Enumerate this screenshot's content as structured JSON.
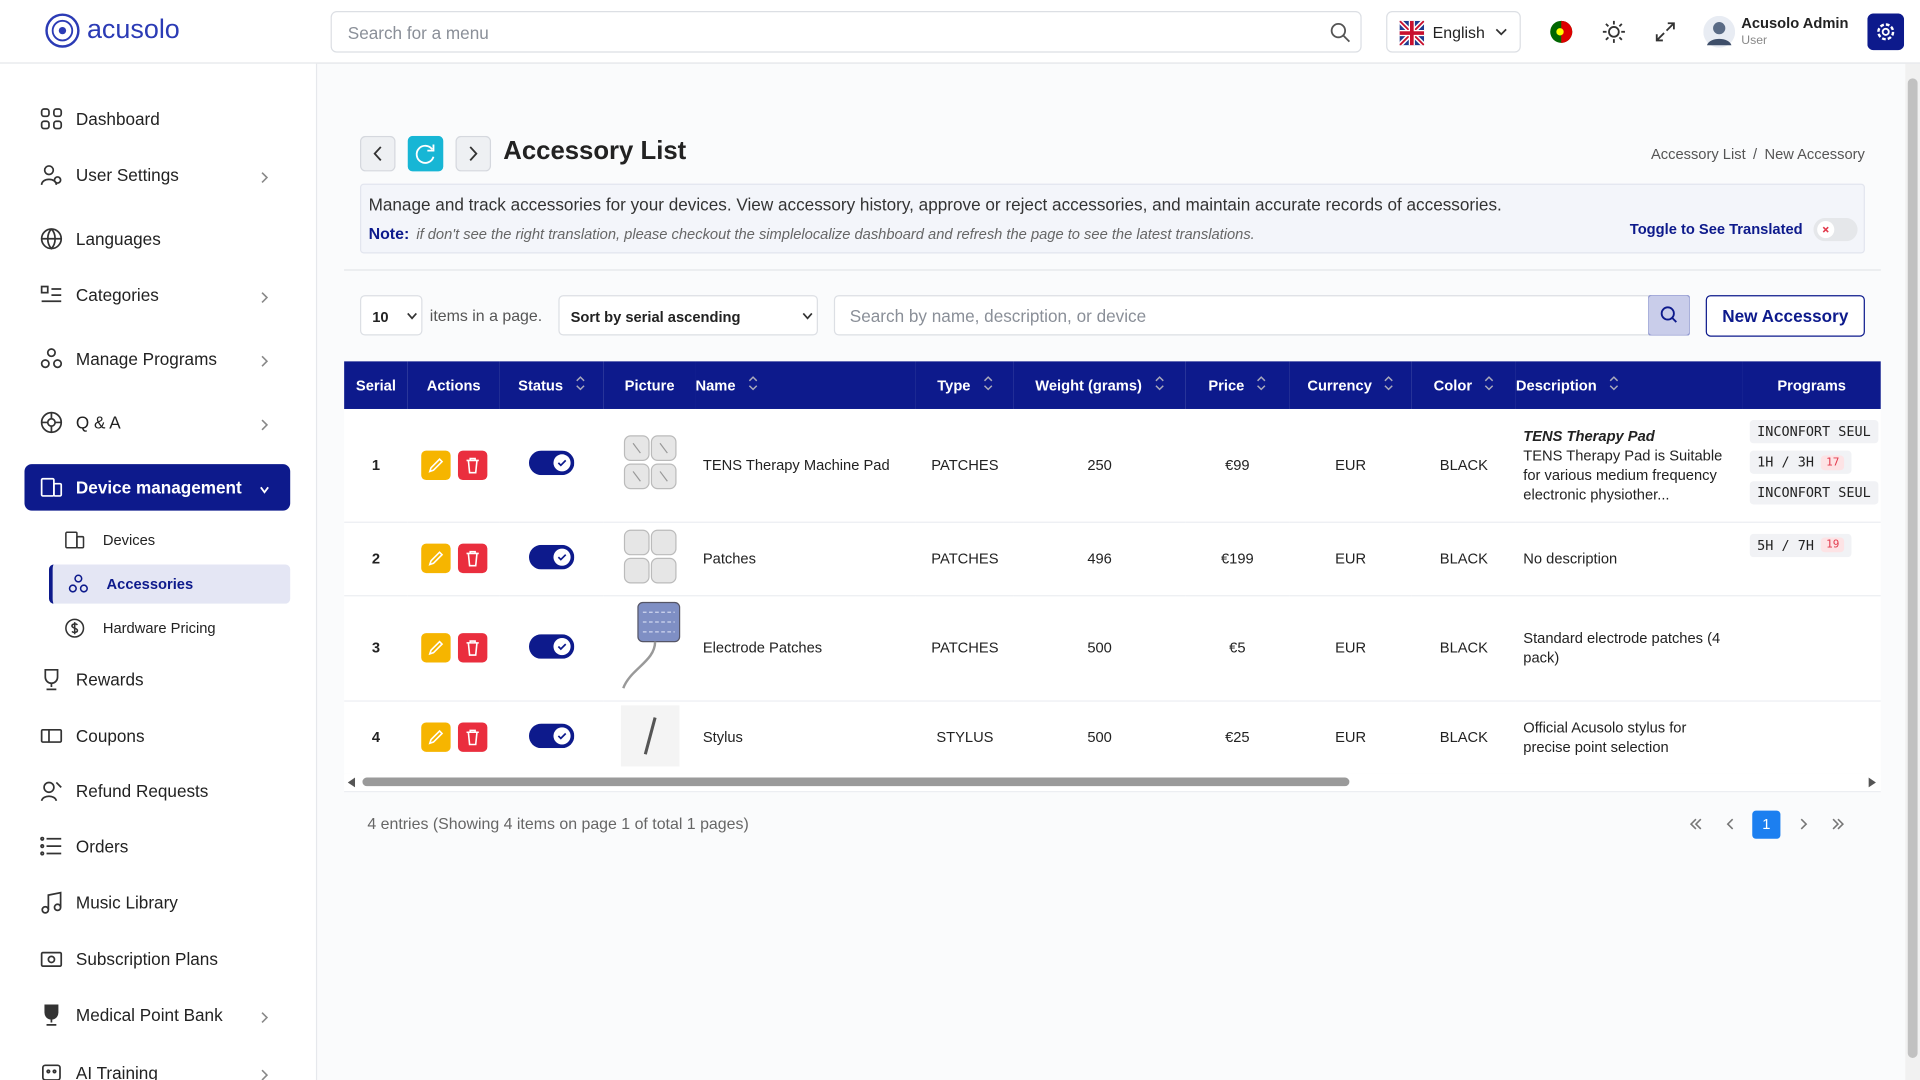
{
  "header": {
    "logo": "acusolo",
    "search_placeholder": "Search for a menu",
    "language": "English",
    "user_name": "Acusolo Admin",
    "user_role": "User"
  },
  "sidebar": {
    "items": [
      {
        "label": "Dashboard"
      },
      {
        "label": "User Settings",
        "expandable": true
      },
      {
        "label": "Languages"
      },
      {
        "label": "Categories",
        "expandable": true
      },
      {
        "label": "Manage Programs",
        "expandable": true
      },
      {
        "label": "Q & A",
        "expandable": true
      },
      {
        "label": "Device management",
        "expandable": true,
        "active": true,
        "children": [
          {
            "label": "Devices"
          },
          {
            "label": "Accessories",
            "active": true
          },
          {
            "label": "Hardware Pricing"
          }
        ]
      },
      {
        "label": "Rewards"
      },
      {
        "label": "Coupons"
      },
      {
        "label": "Refund Requests"
      },
      {
        "label": "Orders"
      },
      {
        "label": "Music Library"
      },
      {
        "label": "Subscription Plans"
      },
      {
        "label": "Medical Point Bank",
        "expandable": true
      },
      {
        "label": "AI Training",
        "expandable": true
      }
    ]
  },
  "page": {
    "title": "Accessory List",
    "breadcrumb": [
      "Accessory List",
      "New Accessory"
    ],
    "description": "Manage and track accessories for your devices. View accessory history, approve or reject accessories, and maintain accurate records of accessories.",
    "note_label": "Note:",
    "note_text": "if don't see the right translation, please checkout the simplelocalize dashboard and refresh the page to see the latest translations.",
    "toggle_label": "Toggle to See Translated"
  },
  "toolbar": {
    "page_size": "10",
    "page_size_suffix": "items in a page.",
    "sort": "Sort by serial ascending",
    "search_placeholder": "Search by name, description, or device",
    "new_button": "New Accessory"
  },
  "table": {
    "columns": [
      {
        "label": "Serial",
        "sortable": false
      },
      {
        "label": "Actions",
        "sortable": false
      },
      {
        "label": "Status",
        "sortable": true
      },
      {
        "label": "Picture",
        "sortable": false
      },
      {
        "label": "Name",
        "sortable": true
      },
      {
        "label": "Type",
        "sortable": true
      },
      {
        "label": "Weight (grams)",
        "sortable": true
      },
      {
        "label": "Price",
        "sortable": true
      },
      {
        "label": "Currency",
        "sortable": true
      },
      {
        "label": "Color",
        "sortable": true
      },
      {
        "label": "Description",
        "sortable": true
      },
      {
        "label": "Programs",
        "sortable": false
      }
    ],
    "rows": [
      {
        "serial": 1,
        "status": true,
        "name": "TENS Therapy Machine Pad",
        "type": "PATCHES",
        "weight": 250,
        "price": "€99",
        "currency": "EUR",
        "color": "BLACK",
        "description_title": "TENS Therapy Pad",
        "description": "TENS Therapy Pad is Suitable for various medium frequency electronic physiother...",
        "programs": [
          {
            "label": "INCONFORT SEUL"
          },
          {
            "label": "1H / 3H",
            "count": 17
          },
          {
            "label": "INCONFORT SEUL"
          }
        ]
      },
      {
        "serial": 2,
        "status": true,
        "name": "Patches",
        "type": "PATCHES",
        "weight": 496,
        "price": "€199",
        "currency": "EUR",
        "color": "BLACK",
        "description": "No description",
        "programs": [
          {
            "label": "5H / 7H",
            "count": 19
          }
        ]
      },
      {
        "serial": 3,
        "status": true,
        "name": "Electrode Patches",
        "type": "PATCHES",
        "weight": 500,
        "price": "€5",
        "currency": "EUR",
        "color": "BLACK",
        "description": "Standard electrode patches (4 pack)",
        "programs": []
      },
      {
        "serial": 4,
        "status": true,
        "name": "Stylus",
        "type": "STYLUS",
        "weight": 500,
        "price": "€25",
        "currency": "EUR",
        "color": "BLACK",
        "description": "Official Acusolo stylus for precise point selection",
        "programs": []
      }
    ]
  },
  "footer": {
    "summary": "4 entries (Showing 4 items on page 1 of total 1 pages)",
    "pages": [
      1
    ],
    "current_page": 1
  }
}
